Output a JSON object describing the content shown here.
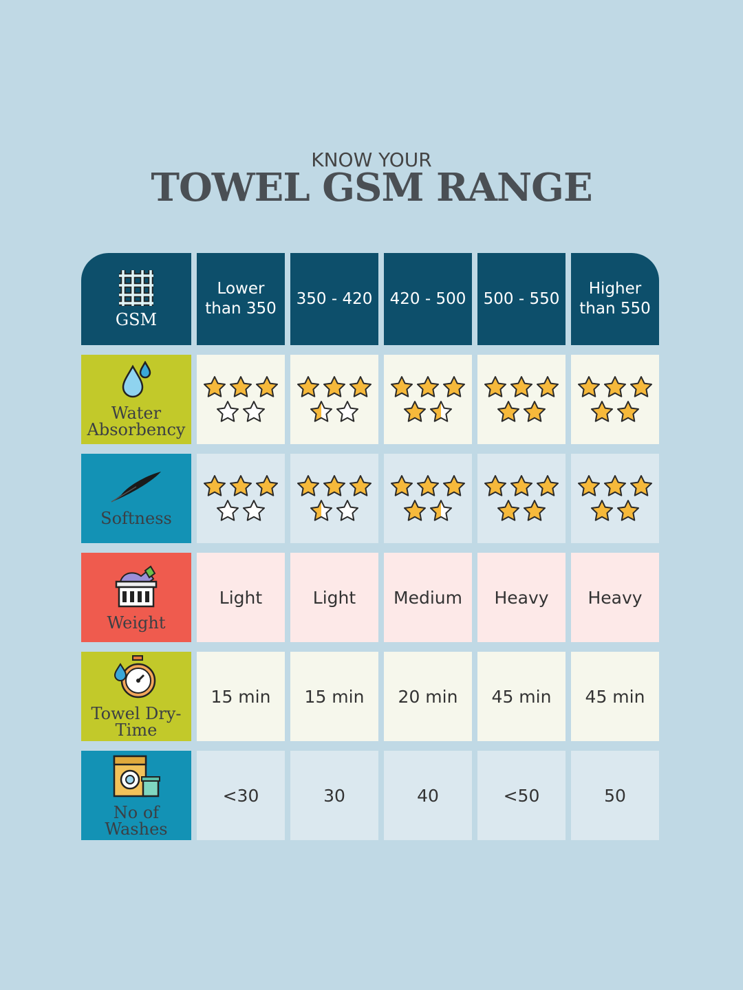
{
  "heading": {
    "kicker": "KNOW YOUR",
    "title": "TOWEL GSM RANGE"
  },
  "header": {
    "label": "GSM",
    "icon": "weave-icon",
    "columns": [
      "Lower than 350",
      "350 - 420",
      "420 - 500",
      "500 - 550",
      "Higher than 550"
    ]
  },
  "rows": [
    {
      "label": "Water Absorbency",
      "icon": "water-drop-icon",
      "type": "stars",
      "ratings": [
        3,
        3.5,
        4.5,
        5,
        5
      ]
    },
    {
      "label": "Softness",
      "icon": "feather-icon",
      "type": "stars",
      "ratings": [
        3,
        3.5,
        4.5,
        5,
        5
      ]
    },
    {
      "label": "Weight",
      "icon": "laundry-basket-icon",
      "type": "text",
      "values": [
        "Light",
        "Light",
        "Medium",
        "Heavy",
        "Heavy"
      ]
    },
    {
      "label": "Towel Dry-Time",
      "icon": "stopwatch-icon",
      "type": "text",
      "values": [
        "15 min",
        "15 min",
        "20 min",
        "45 min",
        "45 min"
      ]
    },
    {
      "label": "No of Washes",
      "icon": "washing-machine-icon",
      "type": "text",
      "values": [
        "<30",
        "30",
        "40",
        "<50",
        "50"
      ]
    }
  ],
  "rating_max": 5,
  "colors": {
    "background": "#c0d9e5",
    "header": "#0d4f6b",
    "star": "#f6b93b",
    "lime": "#c2c92a",
    "blue": "#1392b5",
    "red": "#ef5b4e"
  }
}
